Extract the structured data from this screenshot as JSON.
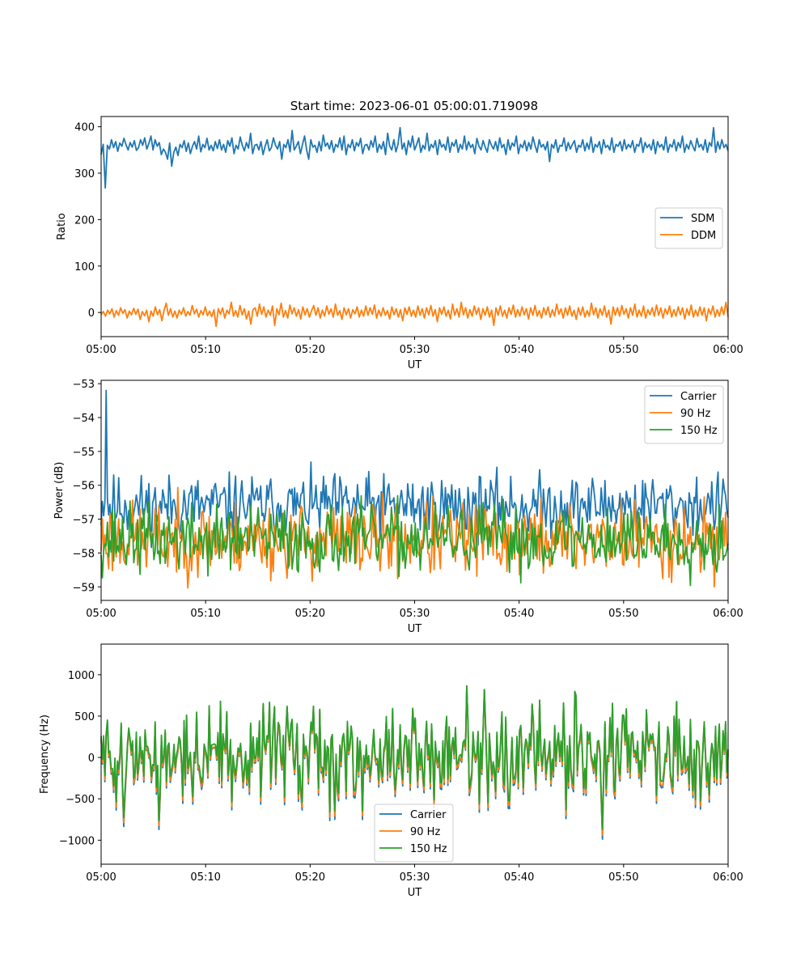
{
  "figure": {
    "title": "Start time: 2023-06-01 05:00:01.719098"
  },
  "chart_data": [
    {
      "type": "line",
      "xlabel": "UT",
      "ylabel": "Ratio",
      "xlim": [
        "05:00",
        "06:00"
      ],
      "xticks": [
        "05:00",
        "05:10",
        "05:20",
        "05:30",
        "05:40",
        "05:50",
        "06:00"
      ],
      "ylim": [
        -52,
        422
      ],
      "yticks": [
        0,
        100,
        200,
        300,
        400
      ],
      "legend": "center-right",
      "series": [
        {
          "name": "SDM",
          "color": "#1f77b4",
          "values": [
            340,
            362,
            268,
            360,
            352,
            372,
            355,
            368,
            347,
            365,
            358,
            375,
            361,
            350,
            366,
            356,
            370,
            349,
            355,
            372,
            360,
            376,
            352,
            364,
            380,
            350,
            372,
            358,
            366,
            340,
            352,
            345,
            330,
            365,
            315,
            345,
            356,
            338,
            362,
            355,
            370,
            347,
            365,
            342,
            358,
            368,
            352,
            380,
            346,
            362,
            355,
            375,
            350,
            360,
            348,
            368,
            353,
            372,
            350,
            362,
            345,
            370,
            358,
            376,
            342,
            360,
            352,
            378,
            360,
            348,
            366,
            354,
            386,
            342,
            360,
            362,
            350,
            368,
            340,
            358,
            372,
            348,
            355,
            376,
            360,
            352,
            368,
            330,
            362,
            355,
            372,
            346,
            392,
            350,
            358,
            368,
            342,
            362,
            380,
            350,
            330,
            372,
            356,
            360,
            345,
            368,
            348,
            382,
            358,
            365,
            352,
            370,
            345,
            362,
            356,
            376,
            350,
            380,
            340,
            362,
            355,
            372,
            348,
            366,
            358,
            375,
            342,
            360,
            362,
            350,
            370,
            356,
            380,
            345,
            362,
            352,
            368,
            340,
            386,
            358,
            350,
            372,
            346,
            362,
            398,
            352,
            365,
            340,
            370,
            356,
            380,
            350,
            362,
            376,
            345,
            360,
            352,
            386,
            348,
            362,
            355,
            370,
            340,
            372,
            356,
            362,
            350,
            378,
            345,
            366,
            358,
            372,
            345,
            362,
            352,
            380,
            350,
            368,
            355,
            362,
            342,
            375,
            358,
            350,
            370,
            356,
            345,
            372,
            360,
            352,
            368,
            348,
            376,
            355,
            362,
            340,
            372,
            350,
            365,
            358,
            380,
            342,
            362,
            355,
            370,
            348,
            366,
            352,
            378,
            360,
            345,
            372,
            356,
            362,
            350,
            368,
            325,
            362,
            354,
            372,
            345,
            360,
            358,
            376,
            348,
            366,
            352,
            362,
            370,
            345,
            360,
            356,
            372,
            348,
            365,
            352,
            378,
            345,
            362,
            356,
            368,
            342,
            372,
            355,
            360,
            350,
            376,
            345,
            362,
            358,
            368,
            348,
            372,
            352,
            362,
            355,
            370,
            345,
            362,
            358,
            376,
            345,
            366,
            355,
            362,
            350,
            372,
            342,
            368,
            356,
            362,
            350,
            378,
            345,
            362,
            356,
            372,
            348,
            366,
            355,
            380,
            345,
            362,
            352,
            370,
            358,
            348,
            375,
            356,
            362,
            350,
            372,
            345,
            366,
            358,
            398,
            345,
            368,
            352,
            372,
            355,
            362,
            348
          ]
        },
        {
          "name": "DDM",
          "color": "#ff7f0e",
          "values": [
            -5,
            2,
            -8,
            5,
            -3,
            8,
            -10,
            4,
            -6,
            10,
            -2,
            6,
            -12,
            3,
            -5,
            9,
            -4,
            7,
            -15,
            2,
            -7,
            5,
            -20,
            3,
            -8,
            12,
            -5,
            6,
            -18,
            4,
            20,
            -6,
            8,
            -10,
            3,
            -12,
            5,
            -4,
            10,
            -8,
            2,
            -6,
            15,
            -3,
            7,
            -10,
            4,
            -5,
            12,
            -7,
            3,
            -9,
            6,
            -30,
            8,
            -4,
            10,
            -12,
            5,
            -3,
            22,
            -8,
            4,
            -10,
            15,
            -5,
            8,
            -14,
            3,
            -25,
            6,
            10,
            -8,
            18,
            -4,
            12,
            -10,
            5,
            -6,
            14,
            -28,
            8,
            -5,
            20,
            -10,
            4,
            -12,
            16,
            -3,
            10,
            -8,
            6,
            -14,
            12,
            -5,
            8,
            -10,
            4,
            15,
            -6,
            10,
            -12,
            5,
            -8,
            14,
            -4,
            8,
            -10,
            18,
            -6,
            4,
            -15,
            10,
            -5,
            8,
            -12,
            6,
            -3,
            12,
            -10,
            5,
            -8,
            14,
            -6,
            10,
            -4,
            16,
            -12,
            5,
            -8,
            10,
            -6,
            4,
            -14,
            12,
            -5,
            8,
            -10,
            6,
            -18,
            10,
            -4,
            12,
            -8,
            5,
            -10,
            14,
            -6,
            8,
            -12,
            10,
            -5,
            15,
            -8,
            6,
            -20,
            10,
            -4,
            12,
            -8,
            5,
            -14,
            18,
            -6,
            8,
            -10,
            22,
            -5,
            10,
            -12,
            6,
            -8,
            14,
            -4,
            10,
            -15,
            8,
            -6,
            12,
            -10,
            5,
            -28,
            10,
            -6,
            14,
            -8,
            5,
            -12,
            10,
            -4,
            16,
            -10,
            6,
            -8,
            12,
            -5,
            8,
            -14,
            10,
            -6,
            15,
            -8,
            4,
            -12,
            10,
            -5,
            12,
            -10,
            6,
            -8,
            18,
            -4,
            8,
            -12,
            10,
            -6,
            14,
            -8,
            5,
            -15,
            10,
            -6,
            12,
            -10,
            4,
            -8,
            20,
            -5,
            10,
            -12,
            8,
            -6,
            14,
            -10,
            5,
            -25,
            12,
            -6,
            10,
            -8,
            15,
            -4,
            8,
            -12,
            10,
            -6,
            18,
            -10,
            5,
            -8,
            14,
            -12,
            6,
            -5,
            10,
            -8,
            16,
            -6,
            10,
            -12,
            8,
            -4,
            14,
            -10,
            6,
            -8,
            12,
            -5,
            10,
            -14,
            8,
            -6,
            16,
            -10,
            5,
            -8,
            12,
            -6,
            10,
            -18,
            8,
            -4,
            14,
            -10,
            6,
            -8,
            12,
            -5,
            22,
            -10
          ]
        }
      ]
    },
    {
      "type": "line",
      "xlabel": "UT",
      "ylabel": "Power (dB)",
      "xlim": [
        "05:00",
        "06:00"
      ],
      "xticks": [
        "05:00",
        "05:10",
        "05:20",
        "05:30",
        "05:40",
        "05:50",
        "06:00"
      ],
      "ylim": [
        -59.4,
        -52.9
      ],
      "yticks": [
        -59,
        -58,
        -57,
        -56,
        -55,
        -54,
        -53
      ],
      "legend": "top-right",
      "series": [
        {
          "name": "Carrier",
          "color": "#1f77b4"
        },
        {
          "name": "90 Hz",
          "color": "#ff7f0e"
        },
        {
          "name": "150 Hz",
          "color": "#2ca02c"
        }
      ]
    },
    {
      "type": "line",
      "xlabel": "UT",
      "ylabel": "Frequency (Hz)",
      "xlim": [
        "05:00",
        "06:00"
      ],
      "xticks": [
        "05:00",
        "05:10",
        "05:20",
        "05:30",
        "05:40",
        "05:50",
        "06:00"
      ],
      "ylim": [
        -1290,
        1370
      ],
      "yticks": [
        -1000,
        -500,
        0,
        500,
        1000
      ],
      "legend": "bottom-center",
      "series": [
        {
          "name": "Carrier",
          "color": "#1f77b4"
        },
        {
          "name": "90 Hz",
          "color": "#ff7f0e"
        },
        {
          "name": "150 Hz",
          "color": "#2ca02c"
        }
      ]
    }
  ]
}
